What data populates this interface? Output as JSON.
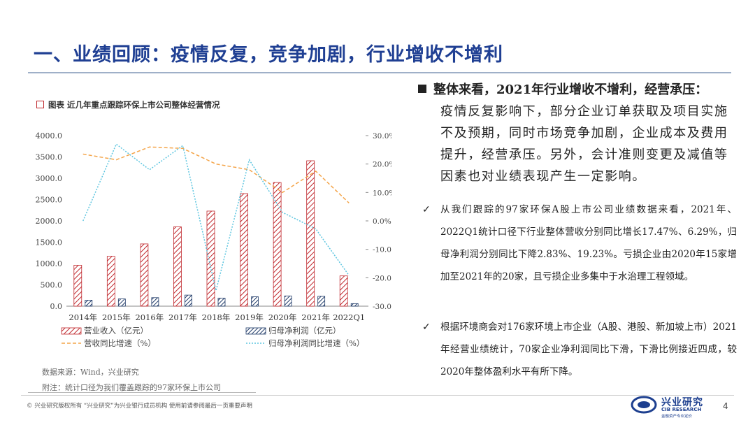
{
  "header": {
    "title": "一、业绩回顾：疫情反复，竞争加剧，行业增收不增利"
  },
  "figure": {
    "caption": "图表 近几年重点跟踪环保上市公司整体经营情况",
    "source": "数据来源：Wind，兴业研究",
    "note": "附注：统计口径为我们覆盖跟踪的97家环保上市公司"
  },
  "chart_data": {
    "type": "bar",
    "categories": [
      "2014年",
      "2015年",
      "2016年",
      "2017年",
      "2018年",
      "2019年",
      "2020年",
      "2021年",
      "2022Q1"
    ],
    "series": [
      {
        "name": "营业收入（亿元）",
        "kind": "bar",
        "axis": "left",
        "color": "#c0282d",
        "values": [
          960,
          1170,
          1460,
          1860,
          2230,
          2640,
          2900,
          3410,
          710
        ]
      },
      {
        "name": "归母净利润（亿元）",
        "kind": "bar",
        "axis": "left",
        "color": "#1f3a68",
        "values": [
          140,
          170,
          200,
          260,
          190,
          220,
          240,
          230,
          60
        ]
      },
      {
        "name": "营收同比增速（%）",
        "kind": "line",
        "axis": "right",
        "color": "#f4a54a",
        "values": [
          23.5,
          21.5,
          26.0,
          25.5,
          20.0,
          18.0,
          10.0,
          17.5,
          6.3
        ]
      },
      {
        "name": "归母净利润同比增速（%）",
        "kind": "line",
        "axis": "right",
        "color": "#5fc6e0",
        "values": [
          0,
          27.0,
          18.0,
          26.5,
          -24.5,
          21.5,
          3.0,
          -2.8,
          -19.2
        ]
      }
    ],
    "y_left": {
      "min": 0,
      "max": 4000,
      "ticks": [
        "0.0",
        "500.0",
        "1000.0",
        "1500.0",
        "2000.0",
        "2500.0",
        "3000.0",
        "3500.0",
        "4000.0"
      ]
    },
    "y_right": {
      "min": -30,
      "max": 30,
      "ticks": [
        "-30.0%",
        "-20.0%",
        "-10.0%",
        "0.0%",
        "10.0%",
        "20.0%",
        "30.0%"
      ]
    },
    "grid": false,
    "legend": "bottom"
  },
  "summary": {
    "lead": "整体来看，2021年行业增收不增利，经营承压：",
    "body": "疫情反复影响下，部分企业订单获取及项目实施不及预期，同时市场竞争加剧，企业成本及费用提升，经营承压。另外，会计准则变更及减值等因素也对业绩表现产生一定影响。"
  },
  "points": [
    {
      "icon": "check-icon",
      "text": "从我们跟踪的97家环保A股上市公司业绩数据来看，2021年、2022Q1统计口径下行业整体营收分别同比增长17.47%、6.29%，归母净利润分别同比下降2.83%、19.23%。亏损企业由2020年15家增加至2021年的20家，且亏损企业多集中于水治理工程领域。"
    },
    {
      "icon": "check-icon",
      "text": "根据环境商会对176家环境上市企业（A股、港股、新加坡上市）2021年经营业绩统计，70家企业净利润同比下滑，下滑比例接近四成，较2020年整体盈利水平有所下降。"
    }
  ],
  "footer": {
    "disclaimer": "©  兴业研究版权所有   “兴业研究”为兴业银行成员机构   使用前请参阅最后一页重要声明",
    "logo_cn": "兴业研究",
    "logo_en": "CIB RESEARCH",
    "logo_sub": "金融资产专业定价",
    "page": "4"
  },
  "colors": {
    "title": "#1f3f93",
    "accent": "#c0282d"
  }
}
